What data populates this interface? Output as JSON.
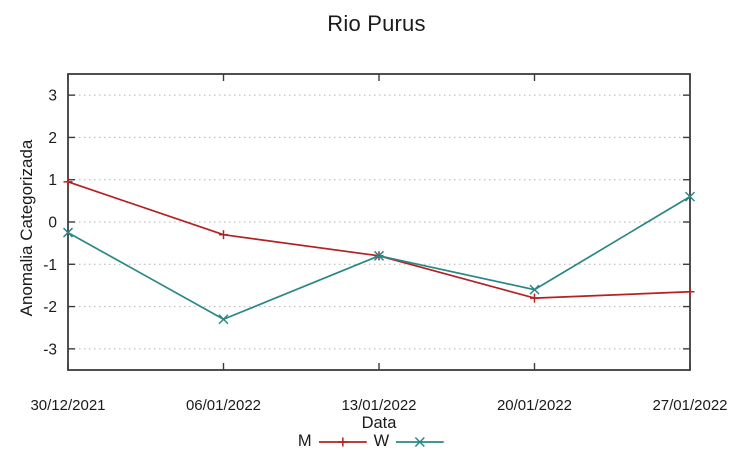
{
  "chart_data": {
    "type": "line",
    "title": "Rio Purus",
    "xlabel": "Data",
    "ylabel": "Anomalia Categorizada",
    "categories": [
      "30/12/2021",
      "06/01/2022",
      "13/01/2022",
      "20/01/2022",
      "27/01/2022"
    ],
    "series": [
      {
        "name": "M",
        "color": "#b22222",
        "marker": "plus",
        "values": [
          0.95,
          -0.3,
          -0.8,
          -1.8,
          -1.65
        ]
      },
      {
        "name": "W",
        "color": "#2b8787",
        "marker": "cross",
        "values": [
          -0.25,
          -2.3,
          -0.8,
          -1.6,
          0.6
        ]
      }
    ],
    "ylim": [
      -3.5,
      3.5
    ],
    "yticks": [
      -3,
      -2,
      -1,
      0,
      1,
      2,
      3
    ],
    "grid": "horizontal-dotted",
    "legend_position": "bottom-center",
    "colors": {
      "grid": "#b3b3b3",
      "border": "#3c3c3c",
      "text": "#1a1a1a"
    }
  }
}
